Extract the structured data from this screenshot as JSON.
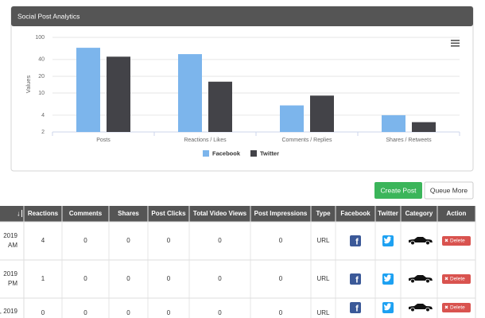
{
  "panel_title": "Social Post Analytics",
  "chart_data": {
    "type": "bar",
    "y_label": "Values",
    "log_scale": true,
    "grid": true,
    "categories": [
      "Posts",
      "Reactions / Likes",
      "Comments / Replies",
      "Shares / Retweets"
    ],
    "series": [
      {
        "name": "Facebook",
        "color": "#7cb5ec",
        "values": [
          65,
          50,
          6,
          4
        ]
      },
      {
        "name": "Twitter",
        "color": "#434348",
        "values": [
          45,
          16,
          9,
          3
        ]
      }
    ],
    "ylim": [
      2,
      100
    ],
    "yticks": [
      2,
      4,
      10,
      20,
      40,
      100
    ],
    "legend": "bottom"
  },
  "buttons": {
    "create": "Create Post",
    "queue": "Queue More"
  },
  "table": {
    "header": [
      "Reactions",
      "Comments",
      "Shares",
      "Post Clicks",
      "Total Video Views",
      "Post Impressions",
      "Type",
      "Facebook",
      "Twitter",
      "Category",
      "Action"
    ],
    "rows": [
      {
        "date": [
          "2019",
          "AM"
        ],
        "cells": [
          4,
          0,
          0,
          0,
          0,
          0,
          "URL"
        ],
        "action": "Delete"
      },
      {
        "date": [
          "2019",
          "PM"
        ],
        "cells": [
          1,
          0,
          0,
          0,
          0,
          0,
          "URL"
        ],
        "action": "Delete"
      },
      {
        "date": [
          ", 2019"
        ],
        "cells": [
          0,
          0,
          0,
          0,
          0,
          0,
          "URL"
        ],
        "action": "Delete"
      }
    ]
  }
}
